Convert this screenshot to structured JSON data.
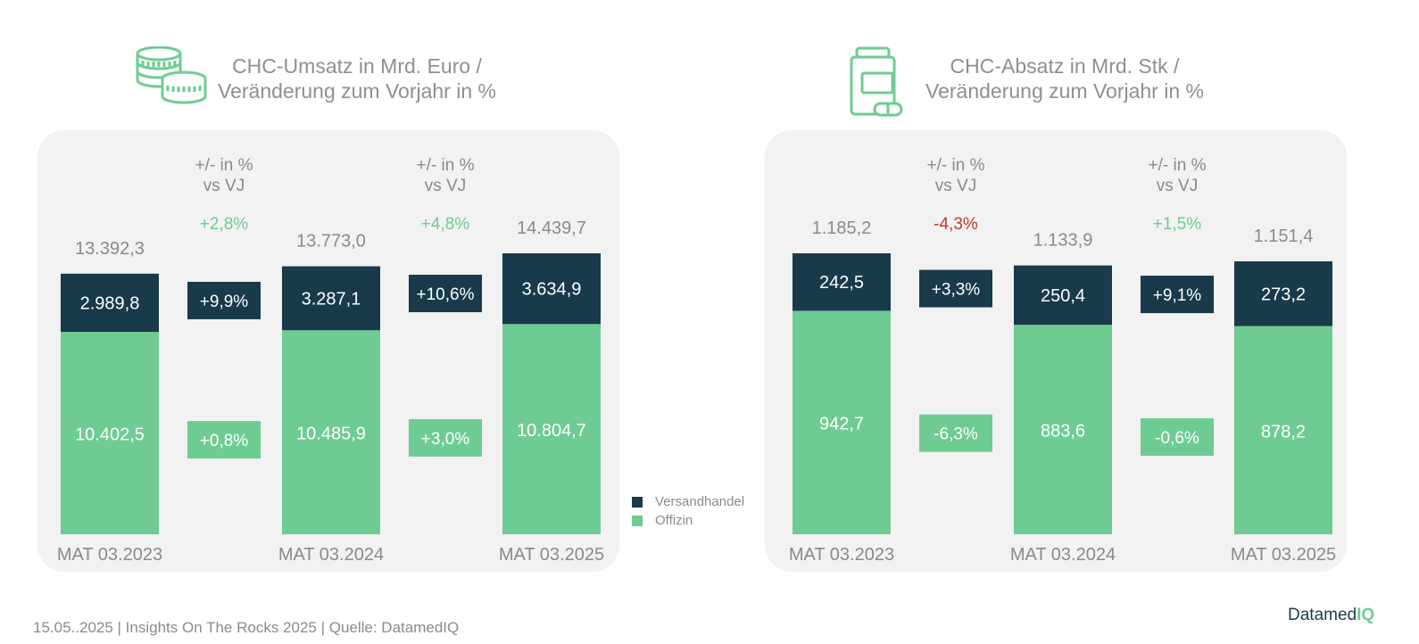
{
  "colors": {
    "versand": "#183a4b",
    "offizin": "#6ecc93",
    "positive": "#6ecc93",
    "negative": "#c0392b",
    "label": "#8a8a8a",
    "panel": "#f2f2f2"
  },
  "legend": {
    "versand": "Versandhandel",
    "offizin": "Offizin"
  },
  "footer": "15.05..2025 | Insights On The Rocks 2025 | Quelle: DatamedIQ",
  "brand": {
    "main": "Datamed",
    "accent": "IQ"
  },
  "icons": {
    "left": "coins-icon",
    "right": "medicine-bottle-icon"
  },
  "chart_data": [
    {
      "type": "bar",
      "title": "CHC-Umsatz in Mrd. Euro / Veränderung zum Vorjahr in %",
      "title_lines": [
        "CHC-Umsatz in Mrd. Euro /",
        "Veränderung zum Vorjahr in %"
      ],
      "categories": [
        "MAT 03.2023",
        "MAT 03.2024",
        "MAT 03.2025"
      ],
      "series": [
        {
          "name": "Offizin",
          "values": [
            10402.5,
            10485.9,
            10804.7
          ],
          "labels": [
            "10.402,5",
            "10.485,9",
            "10.804,7"
          ]
        },
        {
          "name": "Versandhandel",
          "values": [
            2989.8,
            3287.1,
            3634.9
          ],
          "labels": [
            "2.989,8",
            "3.287,1",
            "3.634,9"
          ]
        }
      ],
      "totals": [
        "13.392,3",
        "13.773,0",
        "14.439,7"
      ],
      "change_header": [
        "+/- in %",
        "vs VJ"
      ],
      "changes": [
        {
          "total": "+2,8%",
          "total_sign": "positive",
          "versand": "+9,9%",
          "offizin": "+0,8%"
        },
        {
          "total": "+4,8%",
          "total_sign": "positive",
          "versand": "+10,6%",
          "offizin": "+3,0%"
        }
      ]
    },
    {
      "type": "bar",
      "title": "CHC-Absatz in Mrd. Stk / Veränderung zum Vorjahr in %",
      "title_lines": [
        "CHC-Absatz in Mrd. Stk /",
        "Veränderung zum Vorjahr in %"
      ],
      "categories": [
        "MAT 03.2023",
        "MAT 03.2024",
        "MAT 03.2025"
      ],
      "series": [
        {
          "name": "Offizin",
          "values": [
            942.7,
            883.6,
            878.2
          ],
          "labels": [
            "942,7",
            "883,6",
            "878,2"
          ]
        },
        {
          "name": "Versandhandel",
          "values": [
            242.5,
            250.4,
            273.2
          ],
          "labels": [
            "242,5",
            "250,4",
            "273,2"
          ]
        }
      ],
      "totals": [
        "1.185,2",
        "1.133,9",
        "1.151,4"
      ],
      "change_header": [
        "+/- in %",
        "vs VJ"
      ],
      "changes": [
        {
          "total": "-4,3%",
          "total_sign": "negative",
          "versand": "+3,3%",
          "offizin": "-6,3%"
        },
        {
          "total": "+1,5%",
          "total_sign": "positive",
          "versand": "+9,1%",
          "offizin": "-0,6%"
        }
      ]
    }
  ]
}
